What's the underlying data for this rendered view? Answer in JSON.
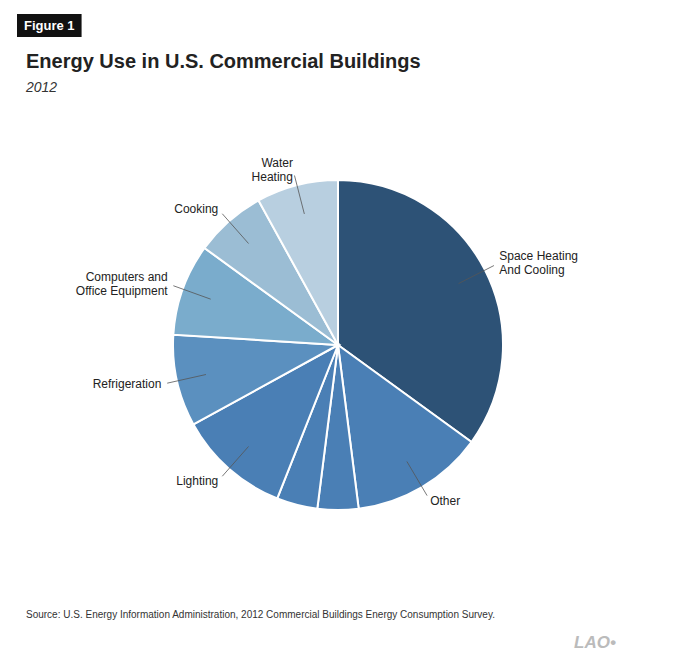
{
  "chart_data": {
    "type": "pie",
    "title": "Energy Use in U.S. Commercial Buildings",
    "subtitle": "2012",
    "categories": [
      "Space Heating\nAnd Cooling",
      "Other",
      null,
      null,
      "Lighting",
      "Refrigeration",
      "Computers and\nOffice Equipment",
      "Cooking",
      "Water\nHeating"
    ],
    "values": [
      35,
      13,
      4,
      4,
      11,
      9,
      9,
      7,
      8
    ],
    "colors": [
      "#2d5276",
      "#4a7fb5",
      "#4a7fb5",
      "#4a7fb5",
      "#4a7fb5",
      "#5b90bf",
      "#7aaccc",
      "#9bbdd4",
      "#b8cfe0"
    ],
    "annotations": [
      "Figure 1",
      "Source: U.S. Energy Information Administration, 2012 Commercial Buildings Energy Consumption Survey.",
      "LAO•"
    ]
  }
}
